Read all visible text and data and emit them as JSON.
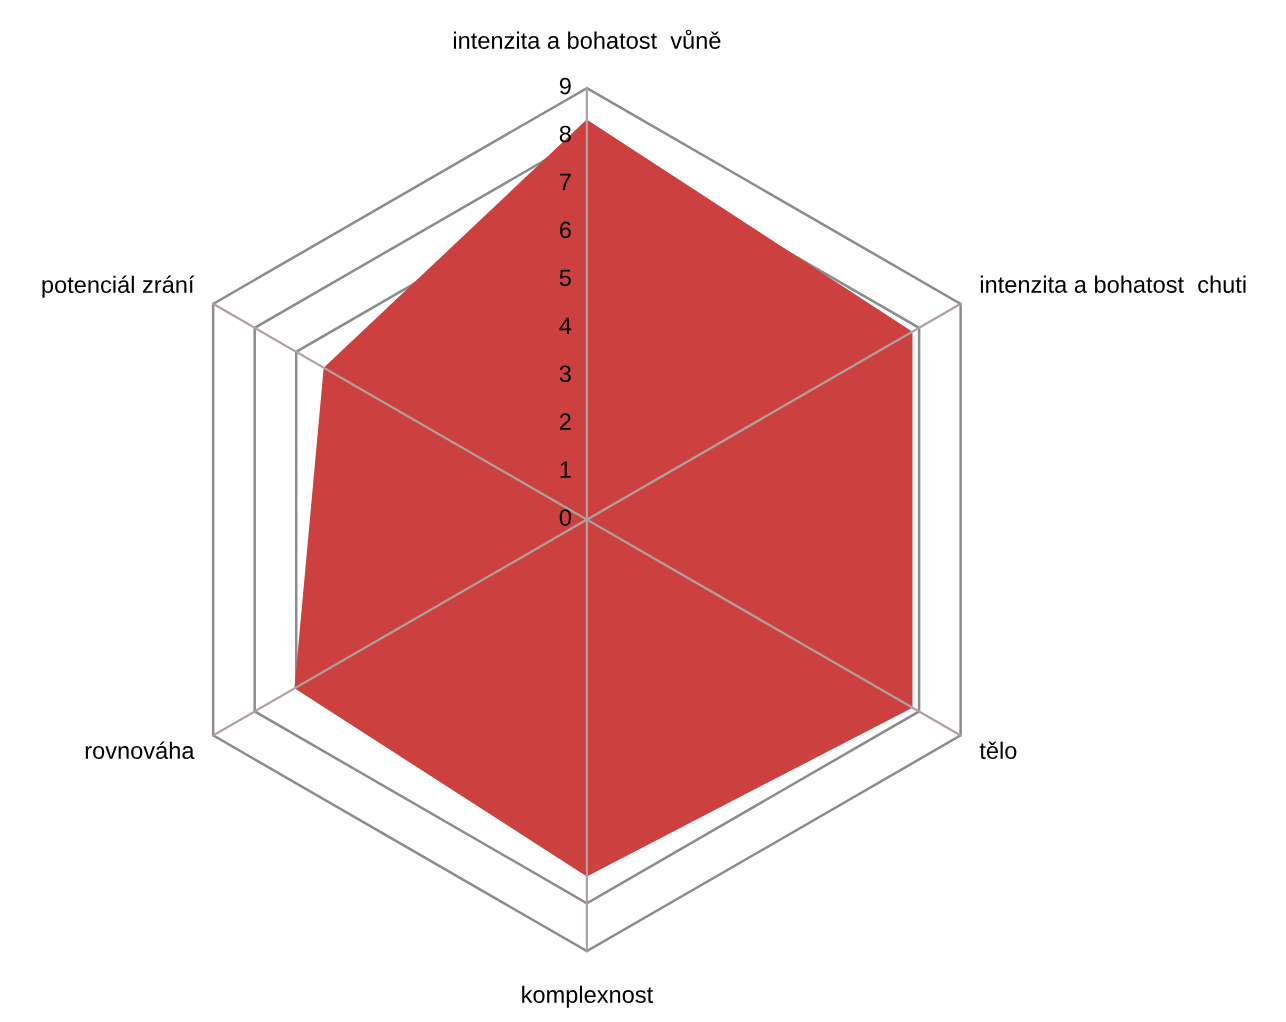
{
  "chart_data": {
    "type": "radar",
    "categories": [
      "intenzita a bohatost  vůně",
      "intenzita a bohatost  chuti",
      "tělo",
      "komplexnost",
      "rovnováha",
      "potenciál zrání"
    ],
    "series": [
      {
        "color": "#cc4040",
        "values": [
          8.3,
          7.8,
          7.8,
          7.4,
          7.0,
          6.3
        ]
      }
    ],
    "ylim": [
      0,
      9
    ],
    "yticks": [
      0,
      1,
      2,
      3,
      4,
      5,
      6,
      7,
      8,
      9
    ],
    "grid": true
  }
}
